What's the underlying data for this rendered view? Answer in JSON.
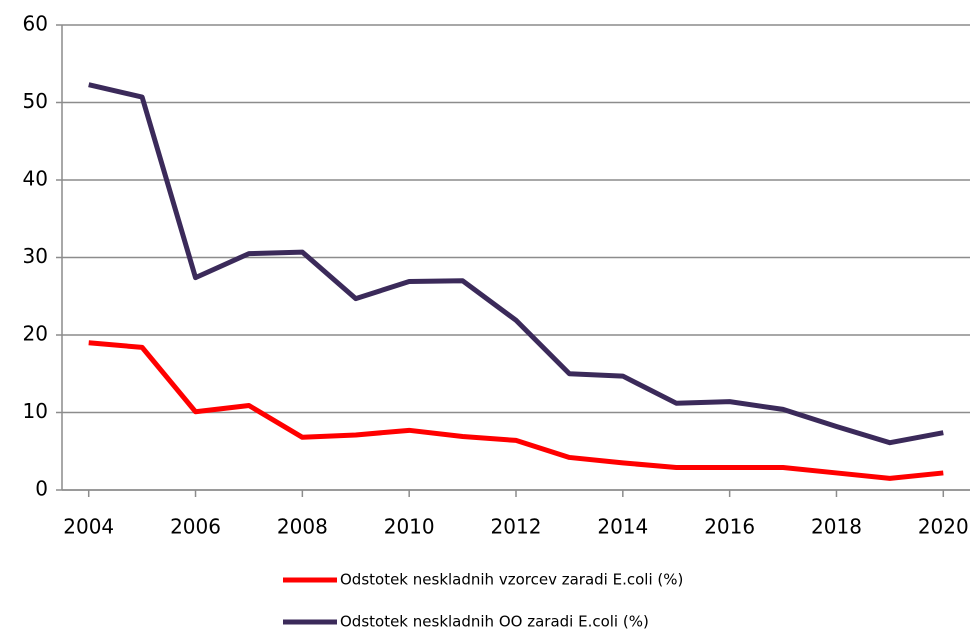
{
  "chart_data": {
    "type": "line",
    "x": [
      2004,
      2005,
      2006,
      2007,
      2008,
      2009,
      2010,
      2011,
      2012,
      2013,
      2014,
      2015,
      2016,
      2017,
      2018,
      2019,
      2020
    ],
    "xlim": [
      2003.5,
      2020.5
    ],
    "xticks": [
      2004,
      2006,
      2008,
      2010,
      2012,
      2014,
      2016,
      2018,
      2020
    ],
    "ylim": [
      0,
      60
    ],
    "yticks": [
      0,
      10,
      20,
      30,
      40,
      50,
      60
    ],
    "grid": true,
    "legend": "bottom",
    "series": [
      {
        "name": "Odstotek neskladnih vzorcev zaradi E.coli (%)",
        "color": "#ff0000",
        "values": [
          19.0,
          18.4,
          10.1,
          10.9,
          6.8,
          7.1,
          7.7,
          6.9,
          6.4,
          4.2,
          3.5,
          2.9,
          2.9,
          2.9,
          2.2,
          1.5,
          2.2
        ]
      },
      {
        "name": "Odstotek neskladnih OO zaradi E.coli (%)",
        "color": "#3b2a5a",
        "values": [
          52.3,
          50.7,
          27.4,
          30.5,
          30.7,
          24.7,
          26.9,
          27.0,
          21.9,
          15.0,
          14.7,
          11.2,
          11.4,
          10.4,
          8.2,
          6.1,
          7.4
        ]
      }
    ]
  }
}
